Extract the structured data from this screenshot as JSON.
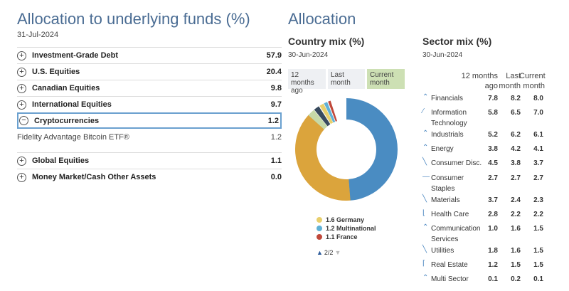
{
  "underlying": {
    "title": "Allocation to underlying funds (%)",
    "date": "31-Jul-2024",
    "rows": [
      {
        "toggle": "+",
        "label": "Investment-Grade Debt",
        "value": "57.9"
      },
      {
        "toggle": "+",
        "label": "U.S. Equities",
        "value": "20.4"
      },
      {
        "toggle": "+",
        "label": "Canadian Equities",
        "value": "9.8"
      },
      {
        "toggle": "+",
        "label": "International Equities",
        "value": "9.7"
      },
      {
        "toggle": "−",
        "label": "Cryptocurrencies",
        "value": "1.2"
      }
    ],
    "sub_row": {
      "label": "Fidelity Advantage Bitcoin ETF®",
      "value": "1.2"
    },
    "rows2": [
      {
        "toggle": "+",
        "label": "Global Equities",
        "value": "1.1"
      },
      {
        "toggle": "+",
        "label": "Money Market/Cash Other Assets",
        "value": "0.0"
      }
    ]
  },
  "allocation": {
    "title": "Allocation",
    "country": {
      "title": "Country mix (%)",
      "date": "30-Jun-2024",
      "tabs": [
        {
          "label": "12 months ago"
        },
        {
          "label": "Last month"
        },
        {
          "label": "Current month",
          "active": true
        }
      ],
      "legend": [
        {
          "value": "1.6",
          "name": "Germany",
          "color": "#e8cf6c"
        },
        {
          "value": "1.2",
          "name": "Multinational",
          "color": "#5fb1d6"
        },
        {
          "value": "1.1",
          "name": "France",
          "color": "#c0483a"
        }
      ],
      "pager": "2/2",
      "donut_colors": {
        "large_blue": "#4a8cc2",
        "large_gold": "#dba43c",
        "light_green": "#c6d9a8",
        "dark": "#384a5e",
        "yellow": "#e8cf6c",
        "cyan": "#5fb1d6",
        "red": "#c0483a"
      }
    },
    "sector": {
      "title": "Sector mix (%)",
      "date": "30-Jun-2024",
      "col_12m": "12 months",
      "col_ago": "ago",
      "col_last": "Last",
      "col_current": "Current",
      "col_month": "month",
      "rows": [
        {
          "icon": "up-icon",
          "glyph": "⌃",
          "name": "Financials",
          "a": "7.8",
          "b": "8.2",
          "c": "8.0"
        },
        {
          "icon": "trend-up-icon",
          "glyph": "⁄",
          "name": "Information Technology",
          "a": "5.8",
          "b": "6.5",
          "c": "7.0"
        },
        {
          "icon": "up-icon",
          "glyph": "⌃",
          "name": "Industrials",
          "a": "5.2",
          "b": "6.2",
          "c": "6.1"
        },
        {
          "icon": "up-icon",
          "glyph": "⌃",
          "name": "Energy",
          "a": "3.8",
          "b": "4.2",
          "c": "4.1"
        },
        {
          "icon": "trend-down-icon",
          "glyph": "╲",
          "name": "Consumer Disc.",
          "a": "4.5",
          "b": "3.8",
          "c": "3.7"
        },
        {
          "icon": "flat-icon",
          "glyph": "—",
          "name": "Consumer Staples",
          "a": "2.7",
          "b": "2.7",
          "c": "2.7"
        },
        {
          "icon": "trend-down-icon",
          "glyph": "╲",
          "name": "Materials",
          "a": "3.7",
          "b": "2.4",
          "c": "2.3"
        },
        {
          "icon": "drop-flat-icon",
          "glyph": "⌊",
          "name": "Health Care",
          "a": "2.8",
          "b": "2.2",
          "c": "2.2"
        },
        {
          "icon": "up-icon",
          "glyph": "⌃",
          "name": "Communication Services",
          "a": "1.0",
          "b": "1.6",
          "c": "1.5"
        },
        {
          "icon": "trend-down-icon",
          "glyph": "╲",
          "name": "Utilities",
          "a": "1.8",
          "b": "1.6",
          "c": "1.5"
        },
        {
          "icon": "rise-flat-icon",
          "glyph": "⌈",
          "name": "Real Estate",
          "a": "1.2",
          "b": "1.5",
          "c": "1.5"
        },
        {
          "icon": "up-icon",
          "glyph": "⌃",
          "name": "Multi Sector",
          "a": "0.1",
          "b": "0.2",
          "c": "0.1"
        }
      ]
    }
  }
}
